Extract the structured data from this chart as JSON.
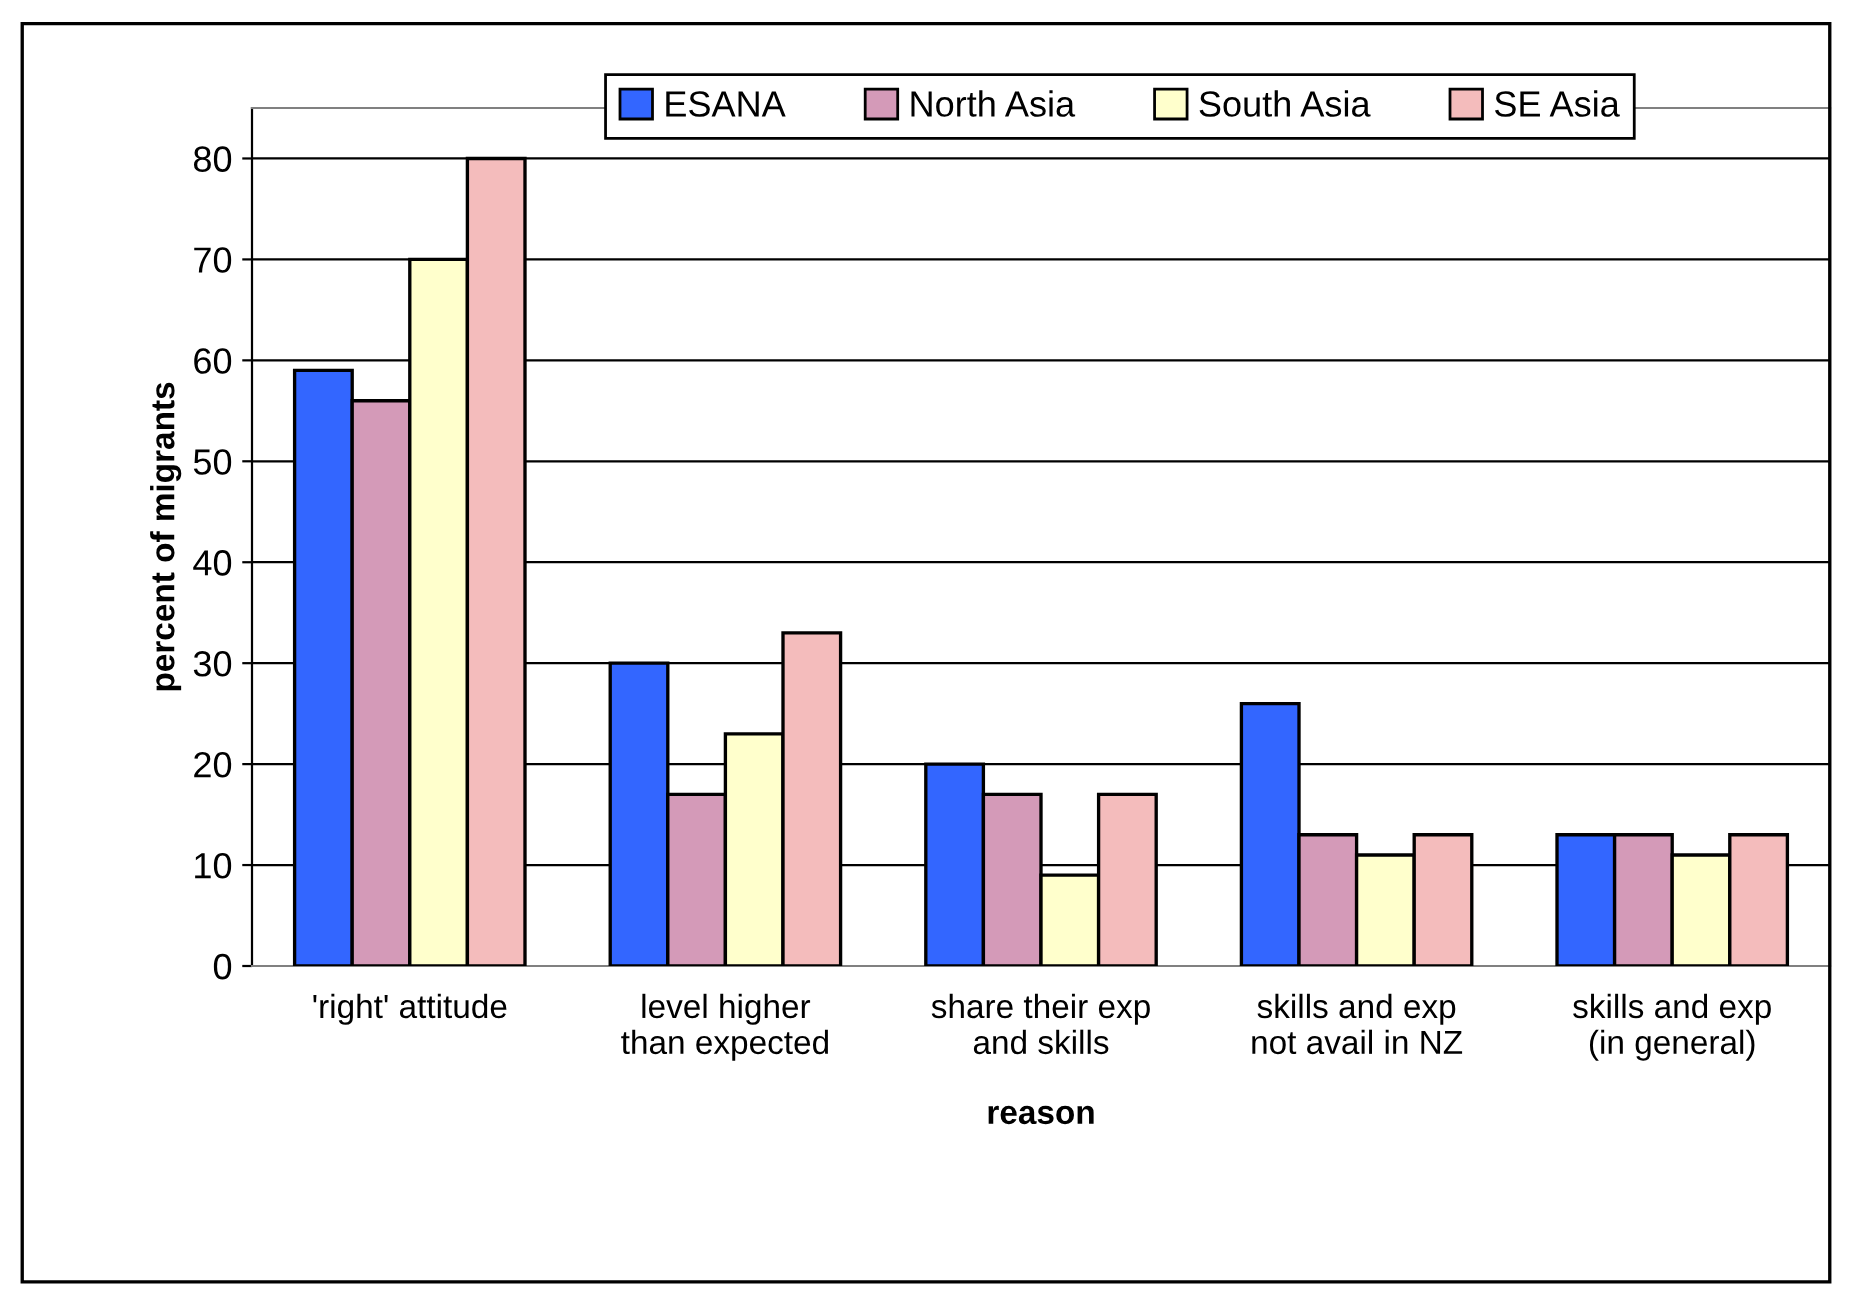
{
  "chart_data": {
    "type": "bar",
    "xlabel": "reason",
    "ylabel": "percent of migrants",
    "categories": [
      "'right' attitude",
      "level higher\nthan expected",
      "share their exp\nand skills",
      "skills and exp\nnot avail in NZ",
      "skills and exp\n(in general)"
    ],
    "series": [
      {
        "name": "ESANA",
        "color": "#3366ff",
        "values": [
          59,
          30,
          20,
          26,
          13
        ]
      },
      {
        "name": "North Asia",
        "color": "#d49ab8",
        "values": [
          56,
          17,
          17,
          13,
          13
        ]
      },
      {
        "name": "South Asia",
        "color": "#ffffcc",
        "values": [
          70,
          23,
          9,
          11,
          11
        ]
      },
      {
        "name": "SE Asia",
        "color": "#f4bcbc",
        "values": [
          80,
          33,
          17,
          13,
          13
        ]
      }
    ],
    "ylim": [
      0,
      85
    ],
    "yticks": [
      0,
      10,
      20,
      30,
      40,
      50,
      60,
      70,
      80
    ],
    "grid": "y",
    "legend": "top"
  }
}
